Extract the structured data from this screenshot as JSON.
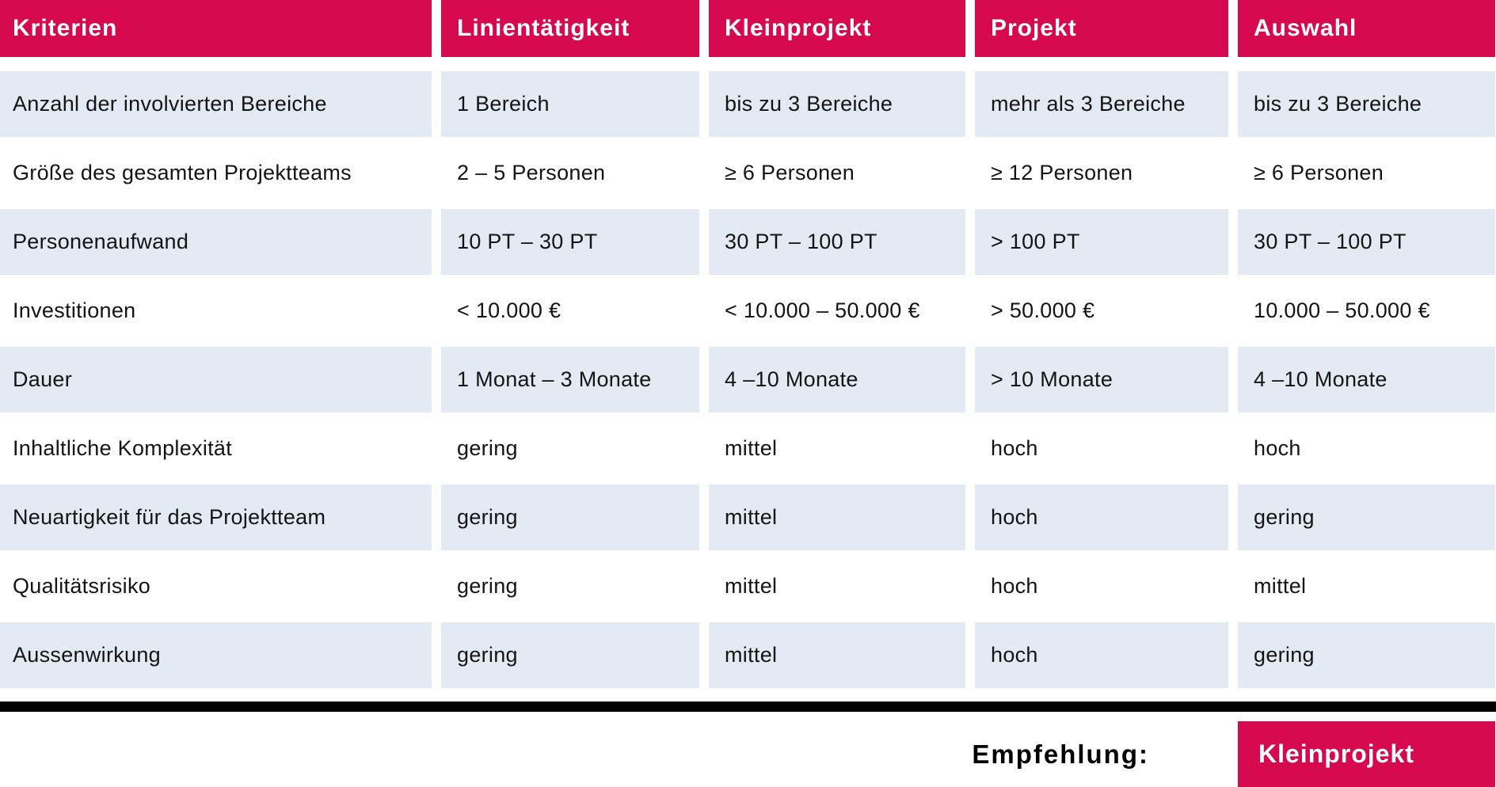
{
  "table": {
    "headers": [
      "Kriterien",
      "Linientätigkeit",
      "Kleinprojekt",
      "Projekt",
      "Auswahl"
    ],
    "rows": [
      {
        "cells": [
          "Anzahl der involvierten Bereiche",
          "1 Bereich",
          "bis zu 3 Bereiche",
          "mehr als 3 Bereiche",
          "bis zu 3 Bereiche"
        ]
      },
      {
        "cells": [
          "Größe des gesamten Projektteams",
          "2 – 5 Personen",
          "≥ 6 Personen",
          "≥ 12 Personen",
          "≥ 6 Personen"
        ]
      },
      {
        "cells": [
          "Personenaufwand",
          "10 PT – 30 PT",
          "30 PT – 100 PT",
          "> 100 PT",
          "30 PT – 100 PT"
        ]
      },
      {
        "cells": [
          "Investitionen",
          "< 10.000 €",
          "< 10.000 – 50.000 €",
          "> 50.000 €",
          "10.000 – 50.000 €"
        ]
      },
      {
        "cells": [
          "Dauer",
          "1 Monat – 3 Monate",
          "4 –10 Monate",
          "> 10 Monate",
          "4 –10 Monate"
        ]
      },
      {
        "cells": [
          "Inhaltliche Komplexität",
          "gering",
          "mittel",
          "hoch",
          "hoch"
        ]
      },
      {
        "cells": [
          "Neuartigkeit für das Projektteam",
          "gering",
          "mittel",
          "hoch",
          "gering"
        ]
      },
      {
        "cells": [
          "Qualitätsrisiko",
          "gering",
          "mittel",
          "hoch",
          "mittel"
        ]
      },
      {
        "cells": [
          "Aussenwirkung",
          "gering",
          "mittel",
          "hoch",
          "gering"
        ]
      }
    ]
  },
  "footer": {
    "label": "Empfehlung:",
    "value": "Kleinprojekt"
  },
  "colors": {
    "accent": "#D6094F",
    "row_highlight": "#E4EAF4",
    "divider": "#000000",
    "header_text": "#FFFFFF",
    "body_text": "#141414"
  }
}
